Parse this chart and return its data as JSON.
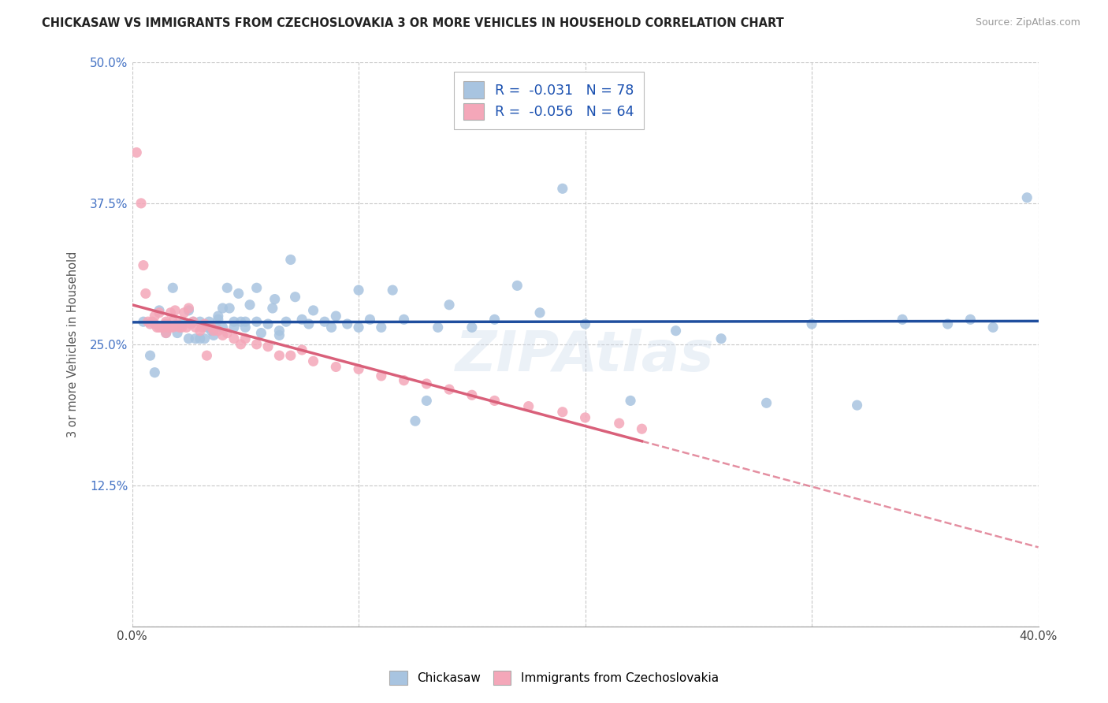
{
  "title": "CHICKASAW VS IMMIGRANTS FROM CZECHOSLOVAKIA 3 OR MORE VEHICLES IN HOUSEHOLD CORRELATION CHART",
  "source": "Source: ZipAtlas.com",
  "ylabel": "3 or more Vehicles in Household",
  "xlim": [
    0.0,
    0.4
  ],
  "ylim": [
    0.0,
    0.5
  ],
  "xtick_positions": [
    0.0,
    0.05,
    0.1,
    0.15,
    0.2,
    0.25,
    0.3,
    0.35,
    0.4
  ],
  "xticklabels": [
    "0.0%",
    "",
    "",
    "",
    "",
    "",
    "",
    "",
    "40.0%"
  ],
  "ytick_positions": [
    0.0,
    0.125,
    0.25,
    0.375,
    0.5
  ],
  "yticklabels": [
    "",
    "12.5%",
    "25.0%",
    "37.5%",
    "50.0%"
  ],
  "blue_R": -0.031,
  "blue_N": 78,
  "pink_R": -0.056,
  "pink_N": 64,
  "blue_color": "#a8c4e0",
  "pink_color": "#f4a7b9",
  "trendline_blue_color": "#1f4e9e",
  "trendline_pink_color": "#d9607a",
  "legend_label_blue": "Chickasaw",
  "legend_label_pink": "Immigrants from Czechoslovakia",
  "watermark": "ZIPAtlas",
  "background_color": "#ffffff",
  "grid_color": "#c8c8c8",
  "blue_scatter_x": [
    0.005,
    0.008,
    0.01,
    0.012,
    0.015,
    0.018,
    0.02,
    0.022,
    0.025,
    0.025,
    0.027,
    0.028,
    0.03,
    0.03,
    0.032,
    0.033,
    0.034,
    0.035,
    0.036,
    0.037,
    0.038,
    0.038,
    0.04,
    0.04,
    0.042,
    0.043,
    0.045,
    0.045,
    0.047,
    0.048,
    0.05,
    0.05,
    0.052,
    0.055,
    0.055,
    0.057,
    0.06,
    0.062,
    0.063,
    0.065,
    0.065,
    0.068,
    0.07,
    0.072,
    0.075,
    0.078,
    0.08,
    0.085,
    0.088,
    0.09,
    0.095,
    0.1,
    0.1,
    0.105,
    0.11,
    0.115,
    0.12,
    0.125,
    0.13,
    0.135,
    0.14,
    0.15,
    0.16,
    0.17,
    0.18,
    0.19,
    0.2,
    0.22,
    0.24,
    0.26,
    0.28,
    0.3,
    0.32,
    0.34,
    0.36,
    0.37,
    0.38,
    0.395
  ],
  "blue_scatter_y": [
    0.27,
    0.24,
    0.225,
    0.28,
    0.26,
    0.3,
    0.26,
    0.268,
    0.28,
    0.255,
    0.27,
    0.255,
    0.255,
    0.27,
    0.255,
    0.265,
    0.27,
    0.262,
    0.258,
    0.265,
    0.272,
    0.275,
    0.282,
    0.265,
    0.3,
    0.282,
    0.27,
    0.265,
    0.295,
    0.27,
    0.27,
    0.265,
    0.285,
    0.3,
    0.27,
    0.26,
    0.268,
    0.282,
    0.29,
    0.262,
    0.258,
    0.27,
    0.325,
    0.292,
    0.272,
    0.268,
    0.28,
    0.27,
    0.265,
    0.275,
    0.268,
    0.265,
    0.298,
    0.272,
    0.265,
    0.298,
    0.272,
    0.182,
    0.2,
    0.265,
    0.285,
    0.265,
    0.272,
    0.302,
    0.278,
    0.388,
    0.268,
    0.2,
    0.262,
    0.255,
    0.198,
    0.268,
    0.196,
    0.272,
    0.268,
    0.272,
    0.265,
    0.38
  ],
  "pink_scatter_x": [
    0.002,
    0.004,
    0.005,
    0.006,
    0.007,
    0.008,
    0.009,
    0.01,
    0.01,
    0.011,
    0.012,
    0.012,
    0.013,
    0.014,
    0.015,
    0.015,
    0.015,
    0.016,
    0.017,
    0.017,
    0.018,
    0.018,
    0.019,
    0.02,
    0.02,
    0.021,
    0.022,
    0.023,
    0.024,
    0.025,
    0.026,
    0.027,
    0.028,
    0.03,
    0.031,
    0.032,
    0.033,
    0.035,
    0.036,
    0.038,
    0.04,
    0.042,
    0.045,
    0.048,
    0.05,
    0.055,
    0.06,
    0.065,
    0.07,
    0.075,
    0.08,
    0.09,
    0.1,
    0.11,
    0.12,
    0.13,
    0.14,
    0.15,
    0.16,
    0.175,
    0.19,
    0.2,
    0.215,
    0.225
  ],
  "pink_scatter_y": [
    0.42,
    0.375,
    0.32,
    0.295,
    0.27,
    0.268,
    0.27,
    0.268,
    0.275,
    0.265,
    0.278,
    0.265,
    0.265,
    0.265,
    0.27,
    0.268,
    0.26,
    0.265,
    0.265,
    0.278,
    0.27,
    0.265,
    0.28,
    0.266,
    0.268,
    0.265,
    0.265,
    0.278,
    0.265,
    0.282,
    0.268,
    0.27,
    0.265,
    0.262,
    0.265,
    0.268,
    0.24,
    0.265,
    0.262,
    0.262,
    0.258,
    0.26,
    0.255,
    0.25,
    0.255,
    0.25,
    0.248,
    0.24,
    0.24,
    0.245,
    0.235,
    0.23,
    0.228,
    0.222,
    0.218,
    0.215,
    0.21,
    0.205,
    0.2,
    0.195,
    0.19,
    0.185,
    0.18,
    0.175
  ]
}
